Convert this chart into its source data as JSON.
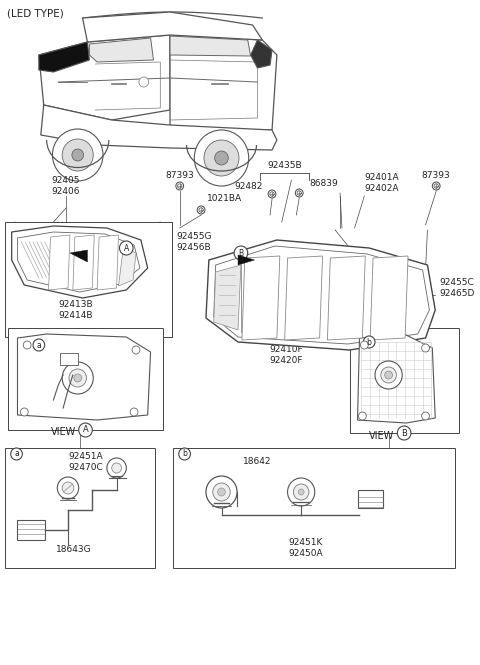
{
  "bg_color": "#ffffff",
  "line_color": "#444444",
  "text_color": "#222222",
  "fig_width": 4.8,
  "fig_height": 6.65,
  "dpi": 100,
  "car": {
    "body_color": "#dddddd",
    "outline_color": "#555555"
  },
  "labels": {
    "led_type": "(LED TYPE)",
    "87393_l": "87393",
    "92435B": "92435B",
    "86839": "86839",
    "92482": "92482",
    "92401A": "92401A\n92402A",
    "87393_r": "87393",
    "92405": "92405\n92406",
    "1021BA": "1021BA",
    "92455G": "92455G\n92456B",
    "92413B": "92413B\n92414B",
    "92455C": "92455C\n92465D",
    "92410F": "92410F\n92420F",
    "viewA": "VIEW",
    "viewB": "VIEW",
    "92451A": "92451A\n92470C",
    "18643G": "18643G",
    "18642": "18642",
    "92451K": "92451K\n92450A"
  }
}
